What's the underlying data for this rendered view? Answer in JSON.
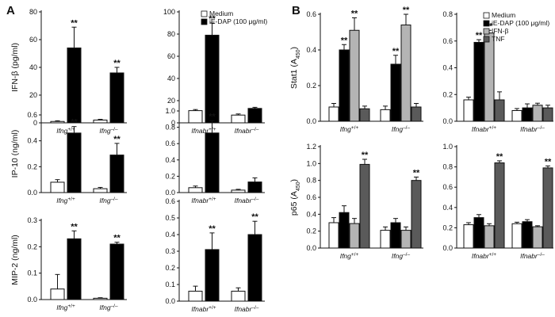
{
  "figure": {
    "panel_a_label": "A",
    "panel_b_label": "B"
  },
  "chart_data": [
    {
      "id": "a-ifnb-ifng",
      "type": "bar",
      "ylabel": "IFN-β (pg/ml)",
      "ylim": [
        0,
        80
      ],
      "yticks": [
        0,
        20,
        40,
        60,
        80
      ],
      "categories": [
        {
          "base": "Ifng",
          "sup": "+/+"
        },
        {
          "base": "Ifng",
          "sup": "–/–"
        }
      ],
      "series": [
        {
          "name": "Medium",
          "color": "#ffffff",
          "values": [
            1,
            2
          ],
          "errors": [
            0.5,
            0.5
          ]
        },
        {
          "name": "iE-DAP (100 μg/ml)",
          "color": "#000000",
          "values": [
            54,
            36
          ],
          "errors": [
            15,
            4
          ]
        }
      ],
      "stars": [
        [
          null,
          "**"
        ],
        [
          null,
          "**"
        ]
      ]
    },
    {
      "id": "a-ifnb-ifnabr",
      "type": "bar",
      "ylabel": "",
      "ylim": [
        0,
        100
      ],
      "yticks": [
        0,
        20,
        40,
        60,
        80,
        100
      ],
      "categories": [
        {
          "base": "Ifnabr",
          "sup": "+/+"
        },
        {
          "base": "Ifnabr",
          "sup": "–/–"
        }
      ],
      "series": [
        {
          "name": "Medium",
          "color": "#ffffff",
          "values": [
            11,
            7
          ],
          "errors": [
            1,
            1
          ]
        },
        {
          "name": "iE-DAP (100 μg/ml)",
          "color": "#000000",
          "values": [
            79,
            13
          ],
          "errors": [
            11,
            1
          ]
        }
      ],
      "stars": [
        [
          null,
          "**"
        ],
        [
          null,
          null
        ]
      ],
      "legend": {
        "position": "top-right",
        "entries": [
          {
            "label": "Medium",
            "color": "#ffffff"
          },
          {
            "label": "iE-DAP (100 μg/ml)",
            "color": "#000000"
          }
        ]
      }
    },
    {
      "id": "a-ip10-ifng",
      "type": "bar",
      "ylabel": "IP-10 (ng/ml)",
      "ylim": [
        0,
        0.6
      ],
      "yticks": [
        0,
        0.2,
        0.4,
        0.6
      ],
      "categories": [
        {
          "base": "Ifng",
          "sup": "+/+"
        },
        {
          "base": "Ifng",
          "sup": "–/–"
        }
      ],
      "series": [
        {
          "name": "Medium",
          "color": "#ffffff",
          "values": [
            0.08,
            0.03
          ],
          "errors": [
            0.02,
            0.01
          ]
        },
        {
          "name": "iE-DAP (100 μg/ml)",
          "color": "#000000",
          "values": [
            0.46,
            0.29
          ],
          "errors": [
            0.05,
            0.09
          ]
        }
      ],
      "stars": [
        [
          null,
          "**"
        ],
        [
          null,
          "**"
        ]
      ]
    },
    {
      "id": "a-ip10-ifnabr",
      "type": "bar",
      "ylabel": "",
      "ylim": [
        0,
        1.0
      ],
      "yticks": [
        0,
        0.2,
        0.4,
        0.6,
        0.8,
        1.0
      ],
      "categories": [
        {
          "base": "Ifnabr",
          "sup": "+/+"
        },
        {
          "base": "Ifnabr",
          "sup": "–/–"
        }
      ],
      "series": [
        {
          "name": "Medium",
          "color": "#ffffff",
          "values": [
            0.06,
            0.03
          ],
          "errors": [
            0.02,
            0.01
          ]
        },
        {
          "name": "iE-DAP (100 μg/ml)",
          "color": "#000000",
          "values": [
            0.73,
            0.13
          ],
          "errors": [
            0.15,
            0.05
          ]
        }
      ],
      "stars": [
        [
          null,
          "**"
        ],
        [
          null,
          null
        ]
      ]
    },
    {
      "id": "a-mip2-ifng",
      "type": "bar",
      "ylabel": "MIP-2 (ng/ml)",
      "ylim": [
        0,
        0.3
      ],
      "yticks": [
        0,
        0.1,
        0.2,
        0.3
      ],
      "categories": [
        {
          "base": "Ifng",
          "sup": "+/+"
        },
        {
          "base": "Ifng",
          "sup": "–/–"
        }
      ],
      "series": [
        {
          "name": "Medium",
          "color": "#ffffff",
          "values": [
            0.04,
            0.005
          ],
          "errors": [
            0.055,
            0.002
          ]
        },
        {
          "name": "iE-DAP (100 μg/ml)",
          "color": "#000000",
          "values": [
            0.23,
            0.21
          ],
          "errors": [
            0.03,
            0.007
          ]
        }
      ],
      "stars": [
        [
          null,
          "**"
        ],
        [
          null,
          "**"
        ]
      ]
    },
    {
      "id": "a-mip2-ifnabr",
      "type": "bar",
      "ylabel": "",
      "ylim": [
        0,
        0.6
      ],
      "yticks": [
        0,
        0.1,
        0.2,
        0.3,
        0.4,
        0.5,
        0.6
      ],
      "categories": [
        {
          "base": "Ifnabr",
          "sup": "+/+"
        },
        {
          "base": "Ifnabr",
          "sup": "–/–"
        }
      ],
      "series": [
        {
          "name": "Medium",
          "color": "#ffffff",
          "values": [
            0.06,
            0.06
          ],
          "errors": [
            0.03,
            0.02
          ]
        },
        {
          "name": "iE-DAP (100 μg/ml)",
          "color": "#000000",
          "values": [
            0.31,
            0.4
          ],
          "errors": [
            0.1,
            0.08
          ]
        }
      ],
      "stars": [
        [
          null,
          "**"
        ],
        [
          null,
          "**"
        ]
      ]
    },
    {
      "id": "b-stat1-ifng",
      "type": "bar",
      "ylabel": "Stat1 (A450)",
      "ylim": [
        0,
        0.6
      ],
      "yticks": [
        0,
        0.2,
        0.4,
        0.6
      ],
      "categories": [
        {
          "base": "Ifng",
          "sup": "+/+"
        },
        {
          "base": "Ifng",
          "sup": "–/–"
        }
      ],
      "series": [
        {
          "name": "Medium",
          "color": "#ffffff",
          "values": [
            0.08,
            0.065
          ],
          "errors": [
            0.02,
            0.02
          ]
        },
        {
          "name": "iE-DAP (100 μg/ml)",
          "color": "#000000",
          "values": [
            0.4,
            0.32
          ],
          "errors": [
            0.03,
            0.05
          ]
        },
        {
          "name": "IFN-β",
          "color": "#b4b4b4",
          "values": [
            0.51,
            0.54
          ],
          "errors": [
            0.07,
            0.06
          ]
        },
        {
          "name": "TNF",
          "color": "#5a5a5a",
          "values": [
            0.07,
            0.08
          ],
          "errors": [
            0.015,
            0.02
          ]
        }
      ],
      "stars": [
        [
          null,
          "**",
          "**",
          null
        ],
        [
          null,
          "**",
          "**",
          null
        ]
      ]
    },
    {
      "id": "b-stat1-ifnabr",
      "type": "bar",
      "ylabel": "",
      "ylim": [
        0,
        0.8
      ],
      "yticks": [
        0,
        0.2,
        0.4,
        0.6,
        0.8
      ],
      "categories": [
        {
          "base": "Ifnabr",
          "sup": "+/+"
        },
        {
          "base": "Ifnabr",
          "sup": "–/–"
        }
      ],
      "series": [
        {
          "name": "Medium",
          "color": "#ffffff",
          "values": [
            0.16,
            0.08
          ],
          "errors": [
            0.02,
            0.015
          ]
        },
        {
          "name": "iE-DAP (100 μg/ml)",
          "color": "#000000",
          "values": [
            0.59,
            0.1
          ],
          "errors": [
            0.02,
            0.03
          ]
        },
        {
          "name": "IFN-β",
          "color": "#b4b4b4",
          "values": [
            0.66,
            0.12
          ],
          "errors": [
            0.02,
            0.015
          ]
        },
        {
          "name": "TNF",
          "color": "#5a5a5a",
          "values": [
            0.16,
            0.1
          ],
          "errors": [
            0.06,
            0.02
          ]
        }
      ],
      "stars": [
        [
          null,
          "**",
          "**",
          null
        ],
        [
          null,
          null,
          null,
          null
        ]
      ],
      "legend": {
        "position": "top-right",
        "entries": [
          {
            "label": "Medium",
            "color": "#ffffff"
          },
          {
            "label": "iE-DAP (100 μg/ml)",
            "color": "#000000"
          },
          {
            "label": "IFN-β",
            "color": "#b4b4b4"
          },
          {
            "label": "TNF",
            "color": "#5a5a5a"
          }
        ]
      }
    },
    {
      "id": "b-p65-ifng",
      "type": "bar",
      "ylabel": "p65 (A450)",
      "ylim": [
        0,
        1.2
      ],
      "yticks": [
        0,
        0.2,
        0.4,
        0.6,
        0.8,
        1.0,
        1.2
      ],
      "categories": [
        {
          "base": "Ifng",
          "sup": "+/+"
        },
        {
          "base": "Ifng",
          "sup": "–/–"
        }
      ],
      "series": [
        {
          "name": "Medium",
          "color": "#ffffff",
          "values": [
            0.3,
            0.21
          ],
          "errors": [
            0.06,
            0.04
          ]
        },
        {
          "name": "iE-DAP (100 μg/ml)",
          "color": "#000000",
          "values": [
            0.42,
            0.3
          ],
          "errors": [
            0.08,
            0.05
          ]
        },
        {
          "name": "IFN-β",
          "color": "#b4b4b4",
          "values": [
            0.29,
            0.21
          ],
          "errors": [
            0.06,
            0.04
          ]
        },
        {
          "name": "TNF",
          "color": "#5a5a5a",
          "values": [
            0.99,
            0.8
          ],
          "errors": [
            0.06,
            0.04
          ]
        }
      ],
      "stars": [
        [
          null,
          null,
          null,
          "**"
        ],
        [
          null,
          null,
          null,
          "**"
        ]
      ]
    },
    {
      "id": "b-p65-ifnabr",
      "type": "bar",
      "ylabel": "",
      "ylim": [
        0,
        1.0
      ],
      "yticks": [
        0,
        0.2,
        0.4,
        0.6,
        0.8,
        1.0
      ],
      "categories": [
        {
          "base": "Ifnabr",
          "sup": "+/+"
        },
        {
          "base": "Ifnabr",
          "sup": "–/–"
        }
      ],
      "series": [
        {
          "name": "Medium",
          "color": "#ffffff",
          "values": [
            0.23,
            0.24
          ],
          "errors": [
            0.02,
            0.015
          ]
        },
        {
          "name": "iE-DAP (100 μg/ml)",
          "color": "#000000",
          "values": [
            0.3,
            0.26
          ],
          "errors": [
            0.03,
            0.02
          ]
        },
        {
          "name": "IFN-β",
          "color": "#b4b4b4",
          "values": [
            0.22,
            0.21
          ],
          "errors": [
            0.02,
            0.01
          ]
        },
        {
          "name": "TNF",
          "color": "#5a5a5a",
          "values": [
            0.84,
            0.79
          ],
          "errors": [
            0.02,
            0.02
          ]
        }
      ],
      "stars": [
        [
          null,
          null,
          null,
          "**"
        ],
        [
          null,
          null,
          null,
          "**"
        ]
      ]
    }
  ]
}
